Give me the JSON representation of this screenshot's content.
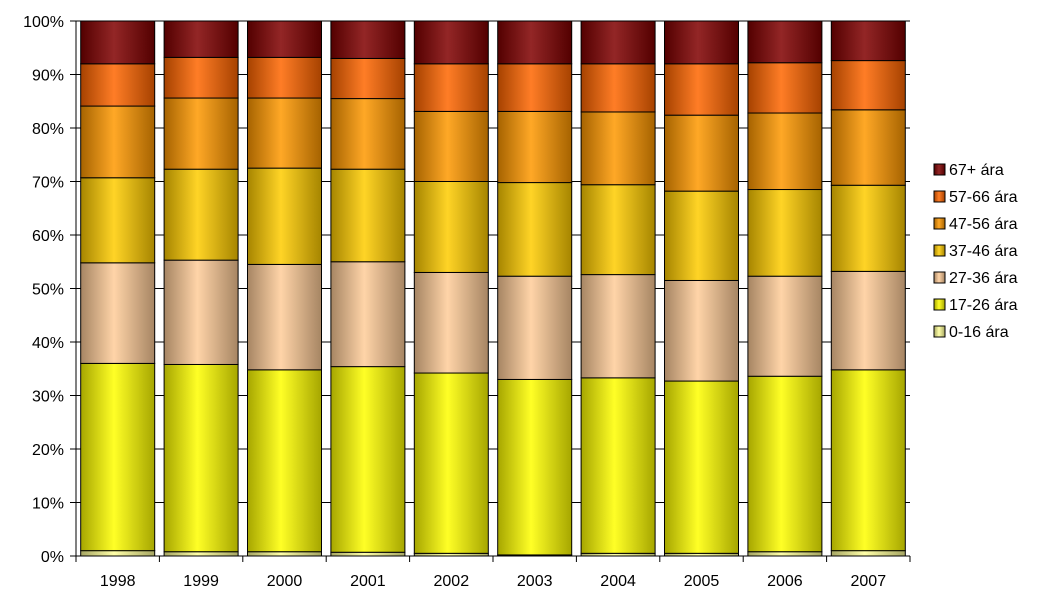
{
  "chart_data": {
    "type": "bar",
    "stacked": true,
    "percent": true,
    "title": "",
    "xlabel": "",
    "ylabel": "",
    "ylim": [
      0,
      100
    ],
    "y_ticks": [
      "0%",
      "10%",
      "20%",
      "30%",
      "40%",
      "50%",
      "60%",
      "70%",
      "80%",
      "90%",
      "100%"
    ],
    "grid": true,
    "legend_position": "right",
    "categories": [
      "1998",
      "1999",
      "2000",
      "2001",
      "2002",
      "2003",
      "2004",
      "2005",
      "2006",
      "2007"
    ],
    "series": [
      {
        "name": "0-16 ára",
        "color": "#FFFF99",
        "values": [
          1.0,
          0.8,
          0.8,
          0.7,
          0.5,
          0.2,
          0.5,
          0.5,
          0.8,
          1.0
        ]
      },
      {
        "name": "17-26 ára",
        "color": "#FFFF00",
        "values": [
          35.0,
          35.0,
          34.0,
          34.7,
          33.7,
          32.8,
          32.8,
          32.2,
          32.8,
          33.8
        ]
      },
      {
        "name": "27-36 ára",
        "color": "#FFCC99",
        "values": [
          18.8,
          19.5,
          19.7,
          19.6,
          18.8,
          19.3,
          19.3,
          18.8,
          18.7,
          18.4
        ]
      },
      {
        "name": "37-46 ára",
        "color": "#FFCC00",
        "values": [
          15.9,
          17.0,
          18.0,
          17.3,
          17.0,
          17.5,
          16.8,
          16.7,
          16.2,
          16.1
        ]
      },
      {
        "name": "47-56 ára",
        "color": "#FF9900",
        "values": [
          13.4,
          13.3,
          13.1,
          13.2,
          13.1,
          13.3,
          13.6,
          14.2,
          14.3,
          14.1
        ]
      },
      {
        "name": "57-66 ára",
        "color": "#FF6600",
        "values": [
          7.9,
          7.6,
          7.6,
          7.5,
          8.9,
          8.9,
          9.0,
          9.6,
          9.4,
          9.2
        ]
      },
      {
        "name": "67+ ára",
        "color": "#800000",
        "values": [
          8.0,
          6.8,
          6.8,
          7.0,
          8.0,
          8.0,
          8.0,
          8.0,
          7.8,
          7.4
        ]
      }
    ]
  }
}
